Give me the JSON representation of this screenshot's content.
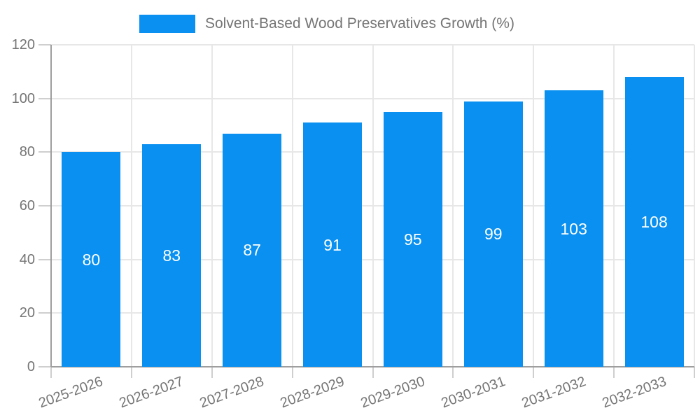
{
  "legend": {
    "label": "Solvent-Based Wood Preservatives Growth (%)"
  },
  "colors": {
    "bar": "#0990F0",
    "axis_line": "#9e9e9e",
    "gridline": "#e7e7e7",
    "tick": "#cfcfcf",
    "axis_label": "#757575",
    "value_label": "#ffffff",
    "background": "#ffffff"
  },
  "chart_data": {
    "type": "bar",
    "title": "",
    "legend_entries": [
      "Solvent-Based Wood Preservatives Growth (%)"
    ],
    "legend_position": "top-center",
    "categories": [
      "2025-2026",
      "2026-2027",
      "2027-2028",
      "2028-2029",
      "2029-2030",
      "2030-2031",
      "2031-2032",
      "2032-2033"
    ],
    "values": [
      80,
      83,
      87,
      91,
      95,
      99,
      103,
      108
    ],
    "xlabel": "",
    "ylabel": "",
    "ylim": [
      0,
      120
    ],
    "yticks": [
      0,
      20,
      40,
      60,
      80,
      100,
      120
    ],
    "grid": "horizontal-and-vertical",
    "x_tick_label_rotation_deg": -20,
    "value_label_position": "inside-center"
  }
}
